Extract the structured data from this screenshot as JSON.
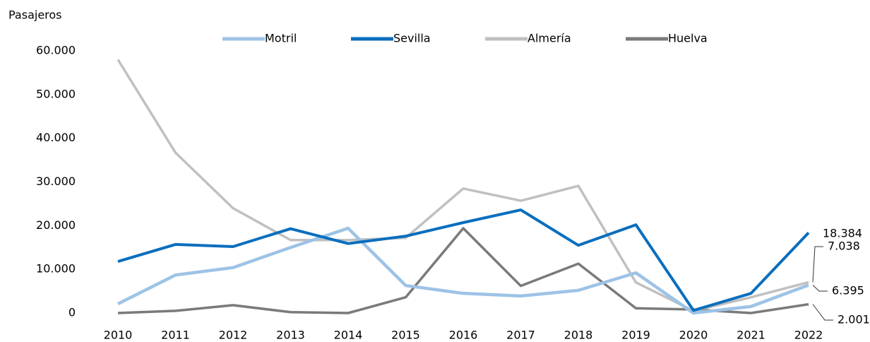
{
  "chart_data": {
    "type": "line",
    "y_axis_label": "Pasajeros",
    "categories": [
      "2010",
      "2011",
      "2012",
      "2013",
      "2014",
      "2015",
      "2016",
      "2017",
      "2018",
      "2019",
      "2020",
      "2021",
      "2022"
    ],
    "series": [
      {
        "name": "Motril",
        "color": "#9dc3e6",
        "values": [
          2100,
          8700,
          10400,
          15000,
          19400,
          6300,
          4500,
          3900,
          5200,
          9200,
          0,
          1500,
          6395
        ],
        "value_labels": [
          null,
          null,
          null,
          null,
          null,
          null,
          null,
          null,
          null,
          null,
          null,
          null,
          "6.395"
        ]
      },
      {
        "name": "Sevilla",
        "color": "#0a6ebd",
        "values": [
          11800,
          15700,
          15200,
          19300,
          15900,
          17600,
          20700,
          23600,
          15500,
          20200,
          600,
          4500,
          18384
        ],
        "value_labels": [
          null,
          null,
          null,
          null,
          null,
          null,
          null,
          null,
          null,
          null,
          null,
          null,
          "18.384"
        ]
      },
      {
        "name": "Almería",
        "color": "#c0c0c0",
        "values": [
          58000,
          36700,
          24000,
          16700,
          16700,
          17200,
          28500,
          25700,
          29100,
          7000,
          500,
          3600,
          7038
        ],
        "value_labels": [
          null,
          null,
          null,
          null,
          null,
          null,
          null,
          null,
          null,
          null,
          null,
          null,
          "7.038"
        ]
      },
      {
        "name": "Huelva",
        "color": "#7a7a7a",
        "values": [
          0,
          500,
          1800,
          200,
          0,
          3600,
          19400,
          6200,
          11300,
          1100,
          800,
          0,
          2001
        ],
        "value_labels": [
          null,
          null,
          null,
          null,
          null,
          null,
          null,
          null,
          null,
          null,
          null,
          null,
          "2.001"
        ]
      }
    ],
    "ylim": [
      0,
      60000
    ],
    "yticks": [
      0,
      {
        "value": 10000,
        "label": "10.000"
      },
      {
        "value": 20000,
        "label": "20.000"
      },
      {
        "value": 30000,
        "label": "30.000"
      },
      {
        "value": 40000,
        "label": "40.000"
      },
      {
        "value": 50000,
        "label": "50.000"
      },
      {
        "value": 60000,
        "label": "60.000"
      }
    ],
    "grid": false,
    "legend": "top"
  }
}
